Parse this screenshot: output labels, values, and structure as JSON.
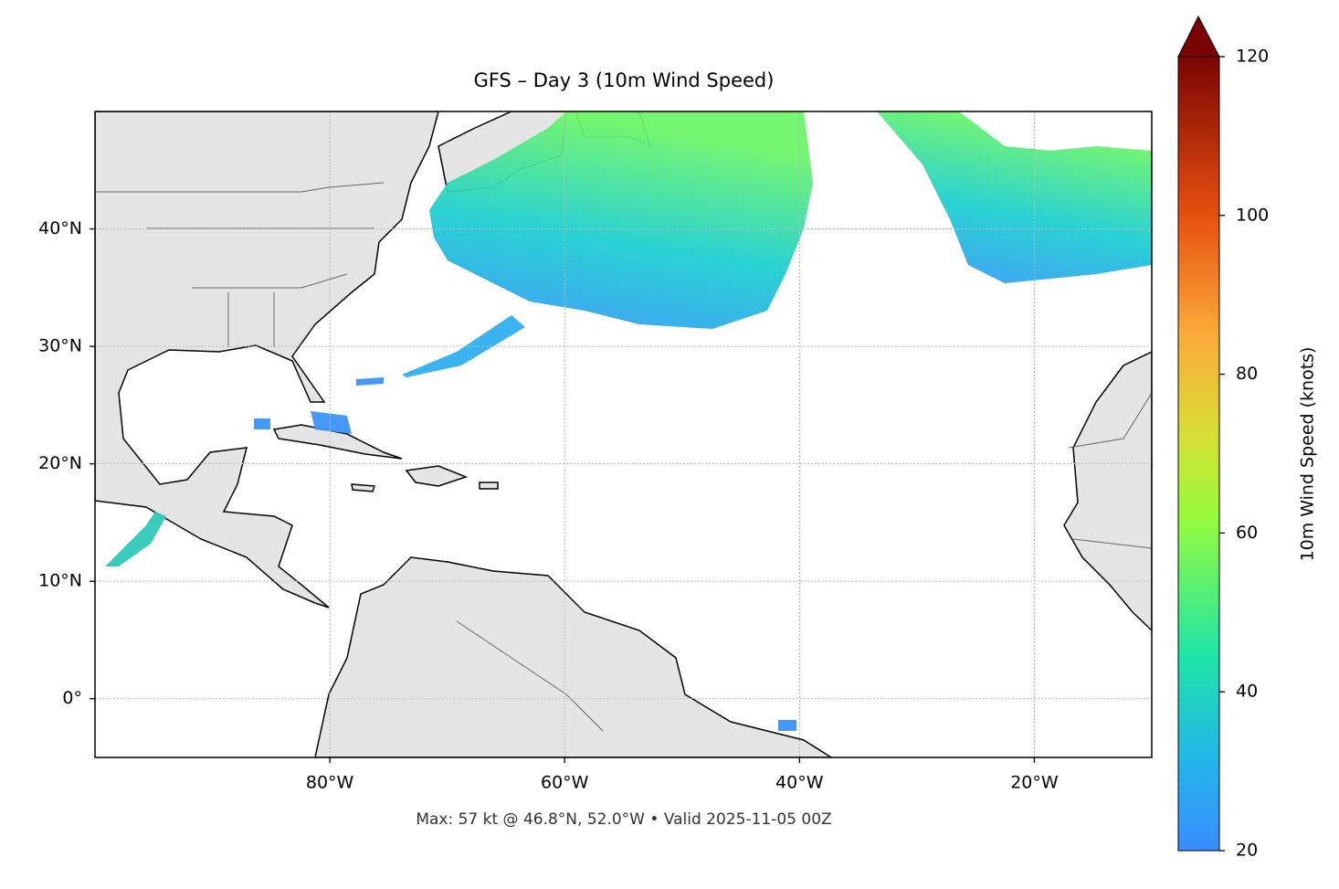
{
  "chart_data": {
    "type": "map",
    "title": "GFS – Day 3 (10m Wind Speed)",
    "xlim": [
      -100,
      -10
    ],
    "ylim": [
      -5,
      50
    ],
    "xticks": [
      {
        "value": -80,
        "label": "80°W"
      },
      {
        "value": -60,
        "label": "60°W"
      },
      {
        "value": -40,
        "label": "40°W"
      },
      {
        "value": -20,
        "label": "20°W"
      }
    ],
    "yticks": [
      {
        "value": 0,
        "label": "0°"
      },
      {
        "value": 10,
        "label": "10°N"
      },
      {
        "value": 20,
        "label": "20°N"
      },
      {
        "value": 30,
        "label": "30°N"
      },
      {
        "value": 40,
        "label": "40°N"
      }
    ],
    "grid": true,
    "colorbar": {
      "label": "10m Wind Speed (knots)",
      "lim": [
        20,
        120
      ],
      "ticks": [
        20,
        40,
        60,
        80,
        100,
        120
      ]
    },
    "footnote": "Max: 57 kt @ 46.8°N, 52.0°W • Valid 2025-11-05 00Z"
  }
}
